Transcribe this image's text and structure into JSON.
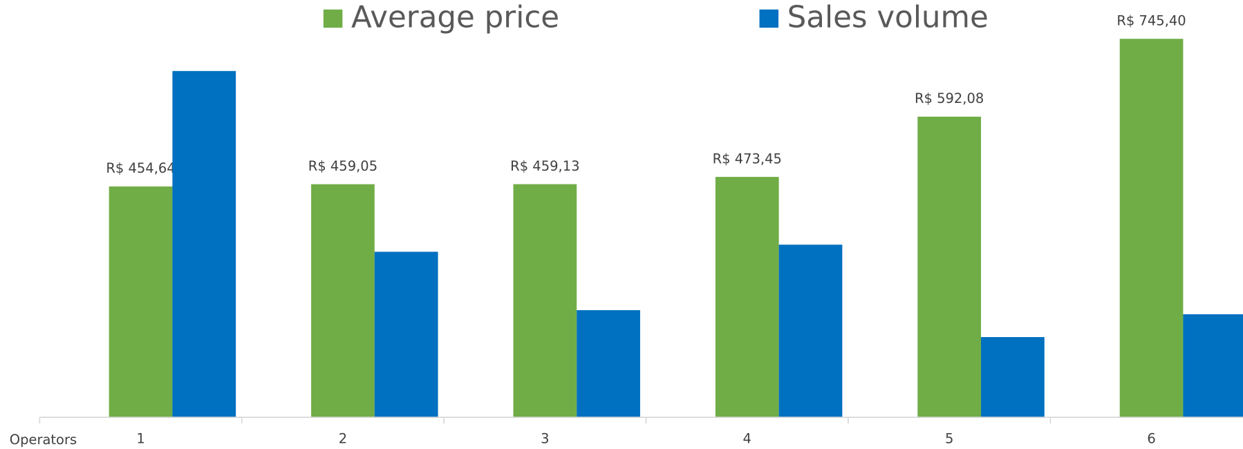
{
  "chart_data": {
    "type": "bar",
    "x_label": "Operators",
    "categories": [
      "1",
      "2",
      "3",
      "4",
      "5",
      "6"
    ],
    "ylim": [
      0,
      800
    ],
    "y2lim": [
      0,
      800
    ],
    "legend": "top",
    "series": [
      {
        "name": "Average price",
        "color": "#70ad47",
        "values": [
          454.64,
          459.05,
          459.13,
          473.45,
          592.08,
          745.4
        ],
        "value_labels": [
          "R$ 454,64",
          "R$ 459,05",
          "R$ 459,13",
          "R$ 473,45",
          "R$ 592,08",
          "R$ 745,40"
        ]
      },
      {
        "name": "Sales volume",
        "color": "#0070c0",
        "axis": "y2",
        "values": [
          682,
          326,
          211,
          340,
          158,
          203
        ]
      }
    ]
  }
}
